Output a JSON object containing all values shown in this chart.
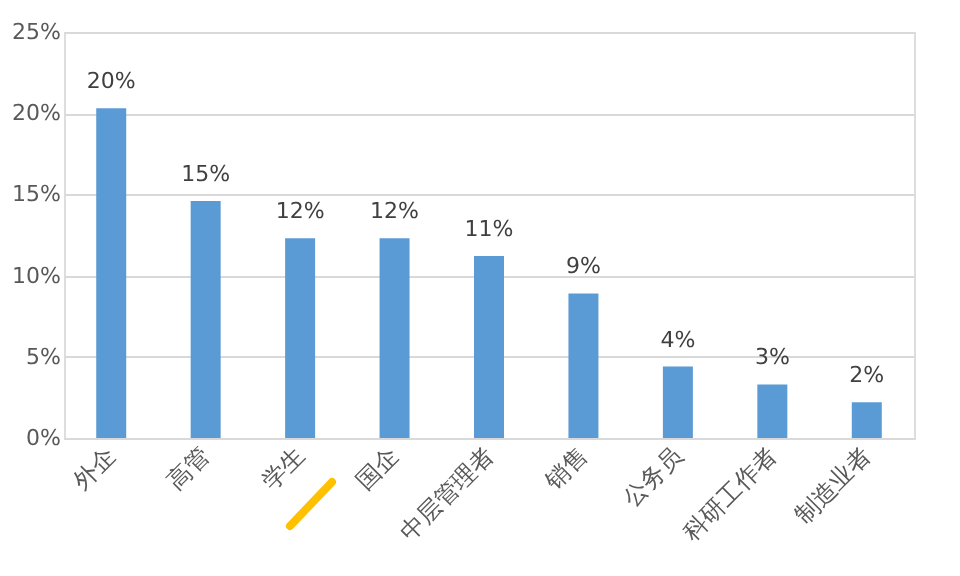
{
  "chart_data": {
    "type": "bar",
    "categories": [
      "外企",
      "高管",
      "学生",
      "国企",
      "中层管理者",
      "销售",
      "公务员",
      "科研工作者",
      "制造业者"
    ],
    "values": [
      20.3,
      14.6,
      12.3,
      12.3,
      11.2,
      8.9,
      4.4,
      3.3,
      2.2
    ],
    "value_labels": [
      "20%",
      "15%",
      "12%",
      "12%",
      "11%",
      "9%",
      "4%",
      "3%",
      "2%"
    ],
    "color": "#5b9bd5",
    "ylim": [
      0,
      25
    ],
    "yticks": [
      {
        "value": 0,
        "label": "0%"
      },
      {
        "value": 5,
        "label": "5%"
      },
      {
        "value": 10,
        "label": "10%"
      },
      {
        "value": 15,
        "label": "15%"
      },
      {
        "value": 20,
        "label": "20%"
      },
      {
        "value": 25,
        "label": "25%"
      }
    ],
    "grid": "y"
  }
}
